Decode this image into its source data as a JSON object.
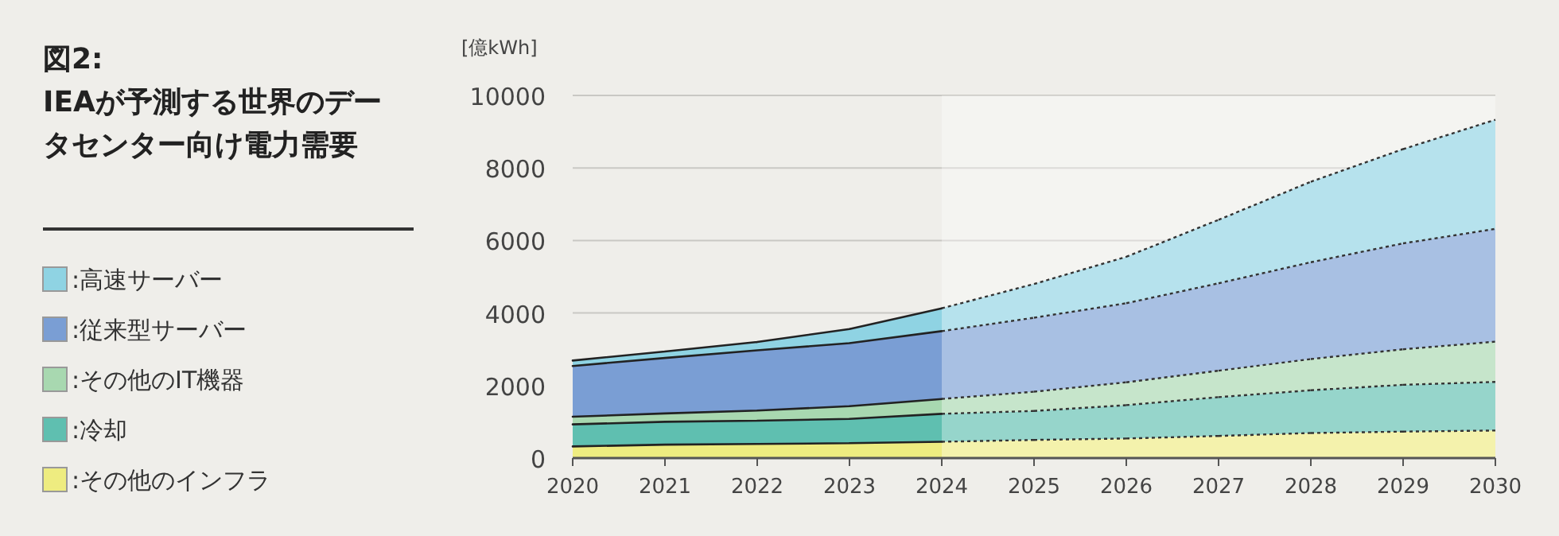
{
  "chart_data": {
    "type": "area",
    "stacked": true,
    "title": "図2:",
    "subtitle": "IEAが予測する世界のデータセンター向け電力需要",
    "ylabel": "[億kWh]",
    "x": [
      2020,
      2021,
      2022,
      2023,
      2024,
      2025,
      2026,
      2027,
      2028,
      2029,
      2030
    ],
    "xlim": [
      2020,
      2030
    ],
    "xticks": [
      2020,
      2021,
      2022,
      2023,
      2024,
      2025,
      2026,
      2027,
      2028,
      2029,
      2030
    ],
    "ylim": [
      0,
      10000
    ],
    "yticks": [
      0,
      2000,
      4000,
      6000,
      8000,
      10000
    ],
    "grid": "y",
    "legend": "left",
    "bands": [
      {
        "axis": "x",
        "from": 2024,
        "to": 2030,
        "color": "#ffffff"
      }
    ],
    "series": [
      {
        "name": ":その他のインフラ",
        "color": "#eeec80",
        "values": [
          320,
          370,
          390,
          410,
          450,
          500,
          540,
          610,
          690,
          730,
          760
        ]
      },
      {
        "name": ":冷却",
        "color": "#5fbfb0",
        "values": [
          610,
          630,
          640,
          670,
          770,
          800,
          920,
          1070,
          1180,
          1290,
          1340
        ]
      },
      {
        "name": ":その他のIT機器",
        "color": "#a8d8b0",
        "values": [
          210,
          230,
          280,
          350,
          410,
          530,
          630,
          730,
          860,
          980,
          1110
        ]
      },
      {
        "name": ":従来型サーバー",
        "color": "#7a9ed4",
        "values": [
          1400,
          1530,
          1660,
          1740,
          1870,
          2040,
          2180,
          2410,
          2670,
          2920,
          3110
        ]
      },
      {
        "name": ":高速サーバー",
        "color": "#8fd3e3",
        "values": [
          150,
          180,
          230,
          390,
          630,
          930,
          1280,
          1750,
          2220,
          2600,
          3010
        ]
      }
    ]
  }
}
